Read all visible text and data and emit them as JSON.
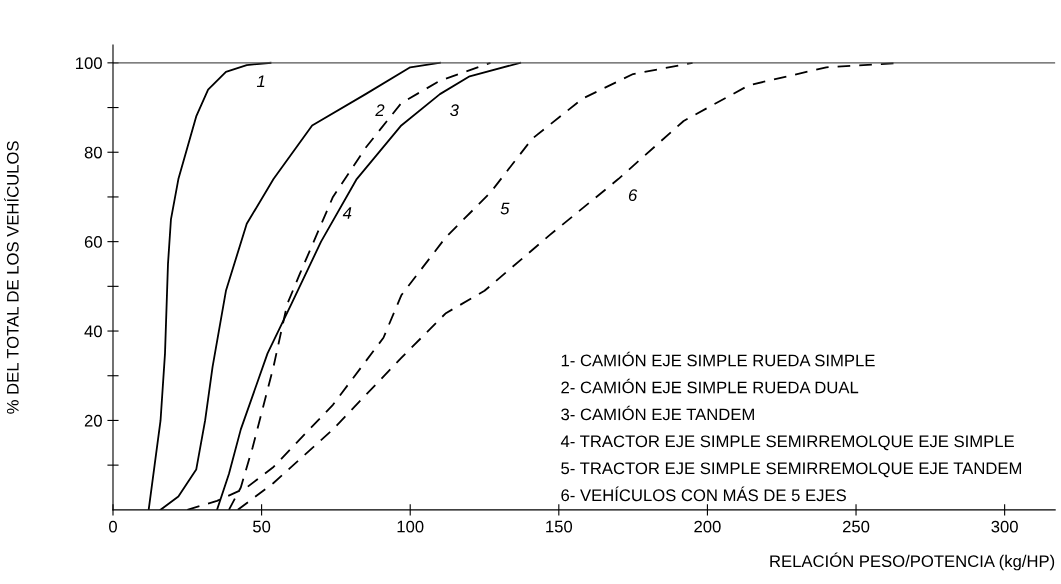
{
  "chart_data": {
    "type": "line",
    "xlabel": "RELACIÓN PESO/POTENCIA (kg/HP)",
    "ylabel": "% DEL TOTAL DE LOS VEHÍCULOS",
    "xlim": [
      0,
      317
    ],
    "ylim": [
      0,
      104
    ],
    "xticks": [
      0,
      50,
      100,
      150,
      200,
      250,
      300
    ],
    "yticks": [
      {
        "value": 10,
        "label": null
      },
      20,
      {
        "value": 30,
        "label": null
      },
      40,
      {
        "value": 50,
        "label": null
      },
      60,
      {
        "value": 70,
        "label": null
      },
      80,
      {
        "value": 90,
        "label": null
      },
      100
    ],
    "grid": false,
    "legend": false,
    "marker": "none",
    "ref_lines": [
      {
        "axis": "y",
        "value": 100,
        "color": "#555555",
        "line_style": "solid"
      }
    ],
    "series": [
      {
        "color": "#000000",
        "line_style": "solid",
        "x": [
          12,
          14,
          16,
          17.5,
          18.5,
          19.5,
          22,
          25,
          28,
          32,
          38,
          45,
          53
        ],
        "values": [
          0,
          10,
          20,
          35,
          55,
          65,
          74,
          81,
          88,
          94,
          98,
          99.5,
          100
        ]
      },
      {
        "color": "#000000",
        "line_style": "solid",
        "x": [
          16,
          22,
          28,
          31,
          33.5,
          38,
          45,
          54,
          67,
          85,
          100,
          110
        ],
        "values": [
          0,
          3,
          9,
          20,
          32,
          49,
          64,
          74,
          86,
          93,
          99,
          100
        ]
      },
      {
        "color": "#000000",
        "line_style": "solid",
        "x": [
          35,
          39,
          43,
          52,
          60,
          70,
          82,
          97,
          110,
          120,
          137
        ],
        "values": [
          0,
          8,
          18,
          35,
          46,
          60,
          74,
          86,
          93,
          97,
          100
        ]
      },
      {
        "color": "#000000",
        "line_style": "dashed",
        "x": [
          39,
          43,
          47,
          54,
          58.6,
          63,
          74,
          85,
          97,
          110,
          127
        ],
        "values": [
          0,
          5,
          14,
          32,
          46,
          53,
          70,
          81,
          91,
          96,
          100
        ]
      },
      {
        "color": "#000000",
        "line_style": "dashed",
        "x": [
          25,
          35,
          45,
          54,
          74,
          91,
          97,
          112,
          127,
          141,
          158,
          175,
          195
        ],
        "values": [
          0,
          2,
          5,
          9.6,
          23.5,
          38.5,
          48,
          61,
          71,
          83,
          92,
          97.5,
          100
        ]
      },
      {
        "color": "#000000",
        "line_style": "dashed",
        "x": [
          42,
          54,
          74,
          97,
          112,
          125,
          147,
          170,
          192,
          214,
          240,
          265
        ],
        "values": [
          0,
          6,
          18,
          34,
          44,
          49,
          61.5,
          74,
          87,
          95,
          99,
          100
        ]
      }
    ],
    "annotations": [
      {
        "text": "1",
        "x": 45,
        "y": 99.5
      },
      {
        "text": "2",
        "x": 85,
        "y": 93
      },
      {
        "text": "3",
        "x": 110,
        "y": 93
      },
      {
        "text": "4",
        "x": 74,
        "y": 70
      },
      {
        "text": "5",
        "x": 127,
        "y": 71
      },
      {
        "text": "6",
        "x": 170,
        "y": 74
      },
      "1- CAMIÓN EJE SIMPLE RUEDA SIMPLE",
      "2- CAMIÓN EJE SIMPLE RUEDA DUAL",
      "3- CAMIÓN EJE TANDEM",
      "4- TRACTOR EJE SIMPLE SEMIRREMOLQUE EJE SIMPLE",
      "5- TRACTOR EJE SIMPLE SEMIRREMOLQUE EJE TANDEM",
      "6- VEHÍCULOS CON MÁS DE 5 EJES"
    ]
  }
}
